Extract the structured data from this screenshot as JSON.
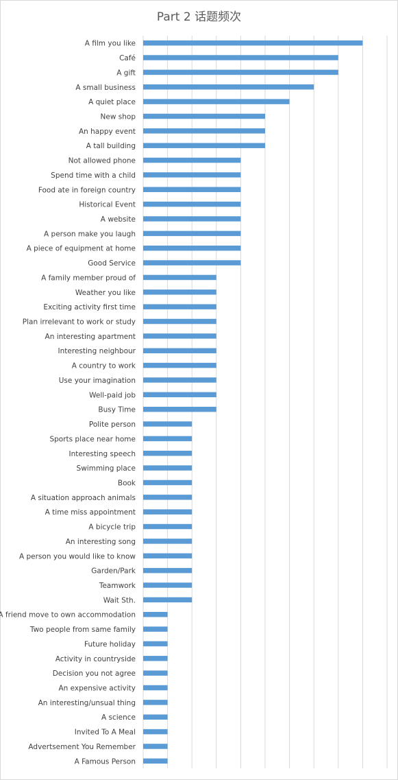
{
  "chart_data": {
    "type": "bar",
    "orientation": "horizontal",
    "title": "Part 2 话题频次",
    "xlabel": "",
    "ylabel": "",
    "xlim": [
      0,
      10
    ],
    "grid": true,
    "legend": "none",
    "bar_color": "#5b9bd5",
    "grid_color": "#d9d9d9",
    "categories": [
      "A film you like",
      "Café",
      "A gift",
      "A small business",
      "A quiet place",
      "New shop",
      "An happy event",
      "A tall building",
      "Not allowed phone",
      "Spend time with a child",
      "Food ate in foreign country",
      "Historical Event",
      "A website",
      "A person make you laugh",
      "A piece of equipment at home",
      "Good Service",
      "A family member proud of",
      "Weather you like",
      "Exciting activity first time",
      "Plan irrelevant to work or study",
      "An interesting apartment",
      "Interesting neighbour",
      "A country to work",
      "Use your imagination",
      "Well-paid job",
      "Busy Time",
      "Polite person",
      "Sports place near home",
      "Interesting speech",
      "Swimming place",
      "Book",
      "A situation approach animals",
      "A time miss appointment",
      "A bicycle trip",
      "An interesting song",
      "A person you would like to know",
      "Garden/Park",
      "Teamwork",
      "Wait Sth.",
      "A friend move to own accommodation",
      "Two people from same family",
      "Future holiday",
      "Activity in countryside",
      "Decision you not agree",
      "An expensive activity",
      "An interesting/unsual thing",
      "A science",
      "Invited To A Meal",
      "Advertsement You Remember",
      "A Famous Person"
    ],
    "values": [
      9,
      8,
      8,
      7,
      6,
      5,
      5,
      5,
      4,
      4,
      4,
      4,
      4,
      4,
      4,
      4,
      3,
      3,
      3,
      3,
      3,
      3,
      3,
      3,
      3,
      3,
      2,
      2,
      2,
      2,
      2,
      2,
      2,
      2,
      2,
      2,
      2,
      2,
      2,
      1,
      1,
      1,
      1,
      1,
      1,
      1,
      1,
      1,
      1,
      1
    ]
  }
}
